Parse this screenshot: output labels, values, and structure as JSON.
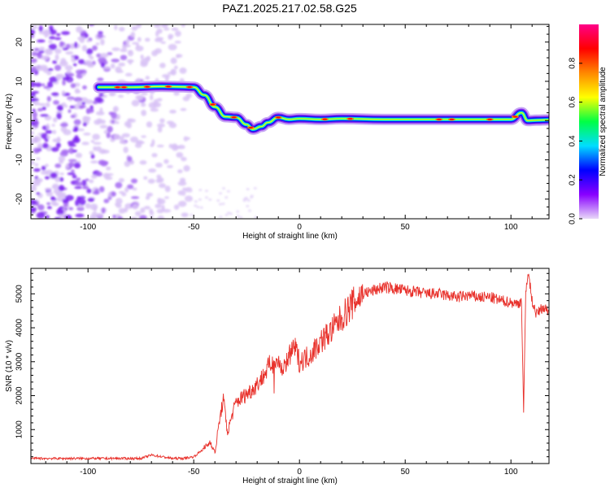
{
  "title": "PAZ1.2025.217.02.58.G25",
  "chart_data": [
    {
      "type": "heatmap",
      "panel": "spectrogram",
      "xlabel": "Height of straight line (km)",
      "ylabel": "Frequency (Hz)",
      "xlim": [
        -127,
        118
      ],
      "ylim": [
        -25,
        24.5
      ],
      "xticks": [
        -100,
        -50,
        0,
        50,
        100
      ],
      "yticks": [
        -20,
        -10,
        0,
        10,
        20
      ],
      "colorbar": {
        "label": "Normalized spectral amplitude",
        "range": [
          0.0,
          1.0
        ],
        "ticks": [
          0.0,
          0.2,
          0.4,
          0.6,
          0.8
        ],
        "tick_labels": [
          "0.0",
          "0.2",
          "0.4",
          "0.6",
          "0.8"
        ],
        "colormap": [
          "#e8d8f8",
          "#8800ff",
          "#0000ff",
          "#00ddff",
          "#00ff44",
          "#ffff00",
          "#ff8800",
          "#ff0000",
          "#ff0088"
        ]
      },
      "ridge": {
        "x": [
          -95,
          -80,
          -65,
          -55,
          -50,
          -45,
          -40,
          -35,
          -30,
          -25,
          -22,
          -18,
          -15,
          -10,
          -5,
          0,
          10,
          20,
          40,
          60,
          80,
          100,
          105,
          108,
          112,
          118
        ],
        "frequency": [
          8.5,
          8.5,
          8.7,
          8.6,
          8.5,
          6.5,
          3.5,
          1.0,
          0.8,
          -1.0,
          -2.2,
          -1.5,
          -0.5,
          0.8,
          0.3,
          0.5,
          0.3,
          0.5,
          0.3,
          0.3,
          0.3,
          0.3,
          2.0,
          0.0,
          0.1,
          0.2
        ]
      },
      "noise_region_x": [
        -127,
        -52
      ]
    },
    {
      "type": "line",
      "panel": "snr",
      "xlabel": "Height of straight line (km)",
      "ylabel": "SNR (10 * v/v)",
      "xlim": [
        -127,
        118
      ],
      "ylim": [
        0,
        5750
      ],
      "xticks": [
        -100,
        -50,
        0,
        50,
        100
      ],
      "yticks": [
        1000,
        2000,
        3000,
        4000,
        5000
      ],
      "line_color": "#e8302a",
      "series": [
        {
          "x": [
            -127,
            -100,
            -75,
            -70,
            -60,
            -55,
            -50,
            -45,
            -42,
            -40,
            -38,
            -36,
            -34,
            -32,
            -30,
            -26,
            -22,
            -18,
            -14,
            -10,
            -8,
            -6,
            -4,
            -2,
            0,
            5,
            10,
            15,
            20,
            25,
            30,
            35,
            40,
            45,
            50,
            55,
            60,
            65,
            70,
            75,
            80,
            85,
            90,
            95,
            100,
            103,
            105,
            106,
            107,
            108,
            110,
            112,
            115,
            118
          ],
          "values": [
            150,
            150,
            150,
            250,
            150,
            150,
            200,
            450,
            650,
            300,
            1200,
            1900,
            900,
            1400,
            1800,
            2000,
            2200,
            2500,
            2900,
            3000,
            2600,
            3100,
            3200,
            3400,
            3000,
            3200,
            3600,
            3900,
            4300,
            4700,
            5000,
            5100,
            5200,
            5150,
            5100,
            5050,
            5000,
            5000,
            4950,
            4900,
            4950,
            4900,
            4900,
            4800,
            4750,
            4700,
            4800,
            1500,
            5000,
            5700,
            4800,
            4400,
            4600,
            4500
          ]
        }
      ]
    }
  ]
}
